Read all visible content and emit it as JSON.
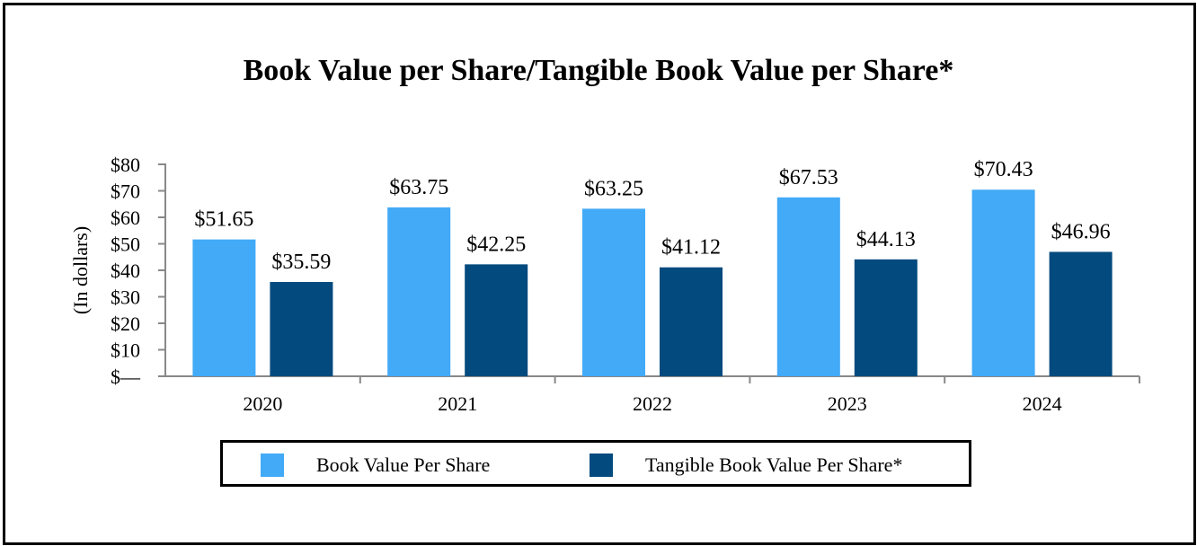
{
  "chart_data": {
    "type": "bar",
    "title": "Book Value per Share/Tangible Book Value per Share*",
    "xlabel": "",
    "ylabel": "(In dollars)",
    "categories": [
      "2020",
      "2021",
      "2022",
      "2023",
      "2024"
    ],
    "series": [
      {
        "name": "Book Value Per Share",
        "values": [
          51.65,
          63.75,
          63.25,
          67.53,
          70.43
        ],
        "labels": [
          "$51.65",
          "$63.75",
          "$63.25",
          "$67.53",
          "$70.43"
        ],
        "color": "#42AAF7"
      },
      {
        "name": "Tangible Book Value Per Share*",
        "values": [
          35.59,
          42.25,
          41.12,
          44.13,
          46.96
        ],
        "labels": [
          "$35.59",
          "$42.25",
          "$41.12",
          "$44.13",
          "$46.96"
        ],
        "color": "#034A7E"
      }
    ],
    "ylim": [
      0,
      80
    ],
    "yticks": [
      0,
      10,
      20,
      30,
      40,
      50,
      60,
      70,
      80
    ],
    "ytick_labels": [
      "$—",
      "$10",
      "$20",
      "$30",
      "$40",
      "$50",
      "$60",
      "$70",
      "$80"
    ],
    "grid": false,
    "legend_position": "bottom"
  }
}
